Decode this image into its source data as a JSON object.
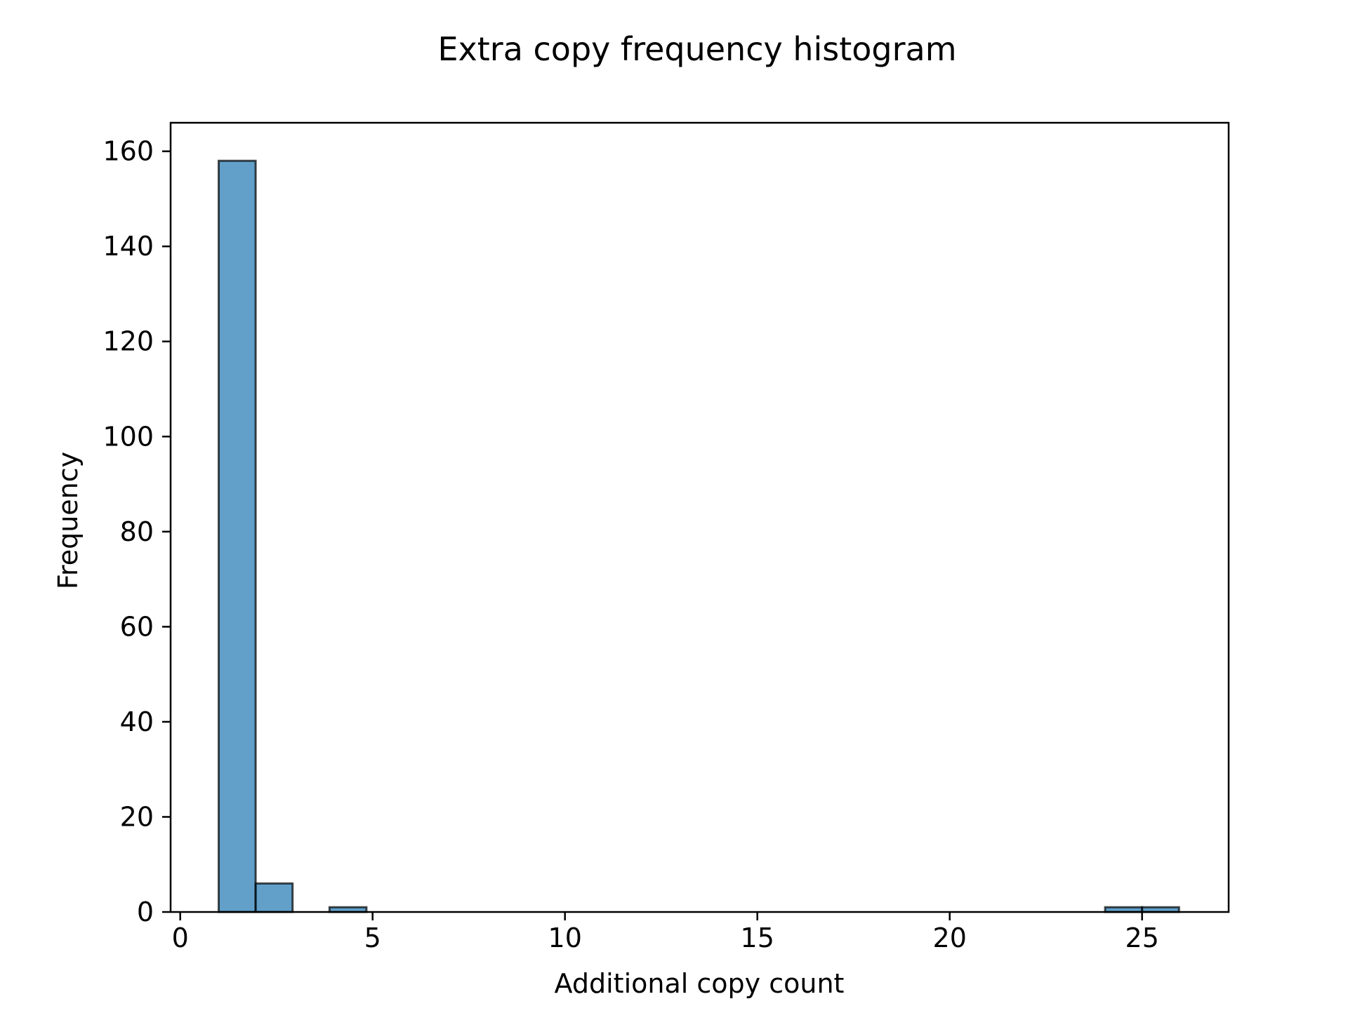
{
  "chart_data": {
    "type": "bar",
    "title": "Extra copy frequency histogram",
    "xlabel": "Additional copy count",
    "ylabel": "Frequency",
    "xlim": [
      -0.25,
      27.25
    ],
    "ylim": [
      0,
      166
    ],
    "xticks": [
      0,
      5,
      10,
      15,
      20,
      25
    ],
    "yticks": [
      0,
      20,
      40,
      60,
      80,
      100,
      120,
      140,
      160
    ],
    "grid": false,
    "bins": [
      {
        "x0": 1.0,
        "x1": 1.96,
        "count": 158
      },
      {
        "x0": 1.96,
        "x1": 2.92,
        "count": 6
      },
      {
        "x0": 2.92,
        "x1": 3.88,
        "count": 0
      },
      {
        "x0": 3.88,
        "x1": 4.84,
        "count": 1
      },
      {
        "x0": 4.84,
        "x1": 5.8,
        "count": 0
      },
      {
        "x0": 5.8,
        "x1": 6.76,
        "count": 0
      },
      {
        "x0": 6.76,
        "x1": 7.72,
        "count": 0
      },
      {
        "x0": 7.72,
        "x1": 8.68,
        "count": 0
      },
      {
        "x0": 8.68,
        "x1": 9.64,
        "count": 0
      },
      {
        "x0": 9.64,
        "x1": 10.6,
        "count": 0
      },
      {
        "x0": 10.6,
        "x1": 11.56,
        "count": 0
      },
      {
        "x0": 11.56,
        "x1": 12.52,
        "count": 0
      },
      {
        "x0": 12.52,
        "x1": 13.48,
        "count": 0
      },
      {
        "x0": 13.48,
        "x1": 14.44,
        "count": 0
      },
      {
        "x0": 14.44,
        "x1": 15.4,
        "count": 0
      },
      {
        "x0": 15.4,
        "x1": 16.36,
        "count": 0
      },
      {
        "x0": 16.36,
        "x1": 17.32,
        "count": 0
      },
      {
        "x0": 17.32,
        "x1": 18.28,
        "count": 0
      },
      {
        "x0": 18.28,
        "x1": 19.24,
        "count": 0
      },
      {
        "x0": 19.24,
        "x1": 20.2,
        "count": 0
      },
      {
        "x0": 20.2,
        "x1": 21.16,
        "count": 0
      },
      {
        "x0": 21.16,
        "x1": 22.12,
        "count": 0
      },
      {
        "x0": 22.12,
        "x1": 23.08,
        "count": 0
      },
      {
        "x0": 23.08,
        "x1": 24.04,
        "count": 0
      },
      {
        "x0": 24.04,
        "x1": 25.0,
        "count": 1
      },
      {
        "x0": 25.0,
        "x1": 25.96,
        "count": 1
      }
    ],
    "colors": {
      "bar_fill": "#1f77b4",
      "bar_edge": "#000000",
      "axes": "#000000"
    }
  }
}
